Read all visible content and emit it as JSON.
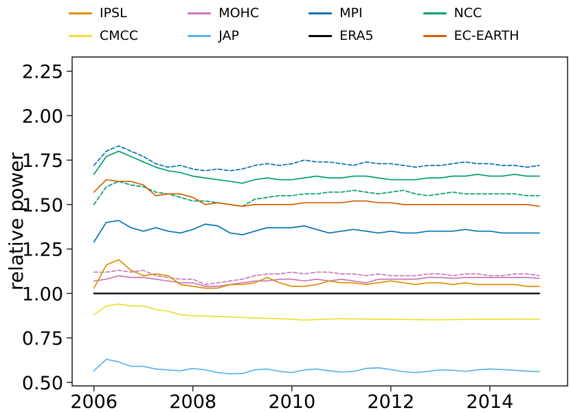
{
  "figure": {
    "ylabel": "relative power"
  },
  "legend": {
    "columns": [
      {
        "entries": [
          {
            "label": "IPSL",
            "color": "#de8f05"
          },
          {
            "label": "CMCC",
            "color": "#ece133"
          }
        ]
      },
      {
        "entries": [
          {
            "label": "MOHC",
            "color": "#cc78bc"
          },
          {
            "label": "JAP",
            "color": "#56b4e9"
          }
        ]
      },
      {
        "entries": [
          {
            "label": "MPI",
            "color": "#0173b2"
          },
          {
            "label": "ERA5",
            "color": "#000000"
          }
        ]
      },
      {
        "entries": [
          {
            "label": "NCC",
            "color": "#029e73"
          },
          {
            "label": "EC-EARTH",
            "color": "#d55e00"
          }
        ]
      }
    ]
  },
  "chart_data": {
    "type": "line",
    "title": "",
    "xlabel": "",
    "ylabel": "relative power",
    "grid": false,
    "legend_position": "top",
    "xlim": [
      2005.56,
      2015.57
    ],
    "ylim": [
      0.48,
      2.33
    ],
    "x_ticks": [
      2006,
      2008,
      2010,
      2012,
      2014
    ],
    "x_tick_labels": [
      "2006",
      "2008",
      "2010",
      "2012",
      "2014"
    ],
    "y_ticks": [
      0.5,
      0.75,
      1.0,
      1.25,
      1.5,
      1.75,
      2.0,
      2.25
    ],
    "y_tick_labels": [
      "0.50",
      "0.75",
      "1.00",
      "1.25",
      "1.50",
      "1.75",
      "2.00",
      "2.25"
    ],
    "x": [
      2006,
      2006.25,
      2006.5,
      2006.75,
      2007,
      2007.25,
      2007.5,
      2007.75,
      2008,
      2008.25,
      2008.5,
      2008.75,
      2009,
      2009.25,
      2009.5,
      2009.75,
      2010,
      2010.25,
      2010.5,
      2010.75,
      2011,
      2011.25,
      2011.5,
      2011.75,
      2012,
      2012.25,
      2012.5,
      2012.75,
      2013,
      2013.25,
      2013.5,
      2013.75,
      2014,
      2014.25,
      2014.5,
      2014.75,
      2015
    ],
    "series": [
      {
        "name": "MPI (dashed)",
        "color": "#0173b2",
        "style": "dashed",
        "values": [
          1.72,
          1.8,
          1.83,
          1.8,
          1.77,
          1.73,
          1.71,
          1.72,
          1.7,
          1.69,
          1.7,
          1.69,
          1.7,
          1.72,
          1.73,
          1.72,
          1.73,
          1.75,
          1.74,
          1.74,
          1.73,
          1.72,
          1.74,
          1.73,
          1.73,
          1.72,
          1.71,
          1.72,
          1.72,
          1.73,
          1.74,
          1.73,
          1.73,
          1.72,
          1.72,
          1.71,
          1.72
        ]
      },
      {
        "name": "NCC",
        "color": "#029e73",
        "style": "solid",
        "values": [
          1.67,
          1.77,
          1.8,
          1.77,
          1.74,
          1.71,
          1.69,
          1.68,
          1.66,
          1.65,
          1.64,
          1.63,
          1.62,
          1.64,
          1.65,
          1.64,
          1.64,
          1.65,
          1.66,
          1.65,
          1.65,
          1.66,
          1.66,
          1.65,
          1.64,
          1.64,
          1.64,
          1.65,
          1.65,
          1.66,
          1.66,
          1.67,
          1.66,
          1.66,
          1.67,
          1.66,
          1.66
        ]
      },
      {
        "name": "NCC (dashed)",
        "color": "#029e73",
        "style": "dashed",
        "values": [
          1.5,
          1.6,
          1.63,
          1.61,
          1.6,
          1.57,
          1.56,
          1.54,
          1.52,
          1.52,
          1.51,
          1.5,
          1.49,
          1.53,
          1.54,
          1.55,
          1.55,
          1.56,
          1.56,
          1.57,
          1.57,
          1.58,
          1.57,
          1.56,
          1.57,
          1.58,
          1.56,
          1.55,
          1.56,
          1.57,
          1.56,
          1.56,
          1.56,
          1.56,
          1.56,
          1.55,
          1.55
        ]
      },
      {
        "name": "EC-EARTH",
        "color": "#d55e00",
        "style": "solid",
        "values": [
          1.57,
          1.64,
          1.63,
          1.63,
          1.61,
          1.55,
          1.56,
          1.56,
          1.54,
          1.5,
          1.51,
          1.5,
          1.49,
          1.5,
          1.5,
          1.5,
          1.5,
          1.51,
          1.51,
          1.51,
          1.51,
          1.52,
          1.52,
          1.51,
          1.51,
          1.5,
          1.5,
          1.5,
          1.5,
          1.5,
          1.5,
          1.5,
          1.5,
          1.5,
          1.5,
          1.5,
          1.49
        ]
      },
      {
        "name": "MPI",
        "color": "#0173b2",
        "style": "solid",
        "values": [
          1.29,
          1.4,
          1.41,
          1.37,
          1.35,
          1.37,
          1.35,
          1.34,
          1.36,
          1.39,
          1.38,
          1.34,
          1.33,
          1.35,
          1.37,
          1.37,
          1.37,
          1.38,
          1.36,
          1.34,
          1.35,
          1.36,
          1.35,
          1.34,
          1.35,
          1.34,
          1.34,
          1.35,
          1.35,
          1.35,
          1.36,
          1.35,
          1.35,
          1.34,
          1.34,
          1.34,
          1.34
        ]
      },
      {
        "name": "MOHC (dashed)",
        "color": "#cc78bc",
        "style": "dashed",
        "values": [
          1.12,
          1.12,
          1.13,
          1.12,
          1.13,
          1.1,
          1.09,
          1.08,
          1.08,
          1.05,
          1.06,
          1.07,
          1.08,
          1.1,
          1.11,
          1.11,
          1.12,
          1.11,
          1.12,
          1.12,
          1.11,
          1.11,
          1.1,
          1.11,
          1.1,
          1.1,
          1.1,
          1.11,
          1.11,
          1.1,
          1.11,
          1.11,
          1.1,
          1.1,
          1.11,
          1.11,
          1.1
        ]
      },
      {
        "name": "MOHC",
        "color": "#cc78bc",
        "style": "solid",
        "values": [
          1.07,
          1.08,
          1.1,
          1.09,
          1.09,
          1.08,
          1.07,
          1.06,
          1.06,
          1.04,
          1.04,
          1.05,
          1.06,
          1.07,
          1.07,
          1.08,
          1.08,
          1.07,
          1.08,
          1.07,
          1.08,
          1.07,
          1.06,
          1.08,
          1.08,
          1.08,
          1.08,
          1.09,
          1.09,
          1.085,
          1.09,
          1.09,
          1.09,
          1.09,
          1.09,
          1.09,
          1.085
        ]
      },
      {
        "name": "IPSL",
        "color": "#de8f05",
        "style": "solid",
        "values": [
          1.03,
          1.16,
          1.19,
          1.13,
          1.1,
          1.11,
          1.1,
          1.05,
          1.04,
          1.03,
          1.03,
          1.05,
          1.05,
          1.06,
          1.09,
          1.06,
          1.04,
          1.04,
          1.05,
          1.07,
          1.06,
          1.06,
          1.05,
          1.06,
          1.07,
          1.06,
          1.05,
          1.06,
          1.06,
          1.05,
          1.06,
          1.05,
          1.05,
          1.05,
          1.05,
          1.04,
          1.04
        ]
      },
      {
        "name": "CMCC",
        "color": "#ece133",
        "style": "solid",
        "values": [
          0.88,
          0.93,
          0.94,
          0.93,
          0.93,
          0.91,
          0.9,
          0.88,
          0.875,
          0.873,
          0.87,
          0.868,
          0.865,
          0.862,
          0.86,
          0.858,
          0.855,
          0.85,
          0.853,
          0.856,
          0.858,
          0.857,
          0.856,
          0.855,
          0.855,
          0.854,
          0.853,
          0.852,
          0.852,
          0.853,
          0.854,
          0.855,
          0.855,
          0.855,
          0.856,
          0.856,
          0.855
        ]
      },
      {
        "name": "JAP",
        "color": "#56b4e9",
        "style": "solid",
        "values": [
          0.565,
          0.63,
          0.615,
          0.59,
          0.59,
          0.575,
          0.57,
          0.565,
          0.578,
          0.57,
          0.555,
          0.548,
          0.55,
          0.57,
          0.575,
          0.562,
          0.555,
          0.57,
          0.575,
          0.565,
          0.558,
          0.562,
          0.578,
          0.582,
          0.572,
          0.56,
          0.555,
          0.562,
          0.57,
          0.568,
          0.562,
          0.57,
          0.575,
          0.572,
          0.568,
          0.563,
          0.56
        ]
      },
      {
        "name": "ERA5",
        "color": "#000000",
        "style": "solid",
        "constant": 1.0
      }
    ]
  }
}
